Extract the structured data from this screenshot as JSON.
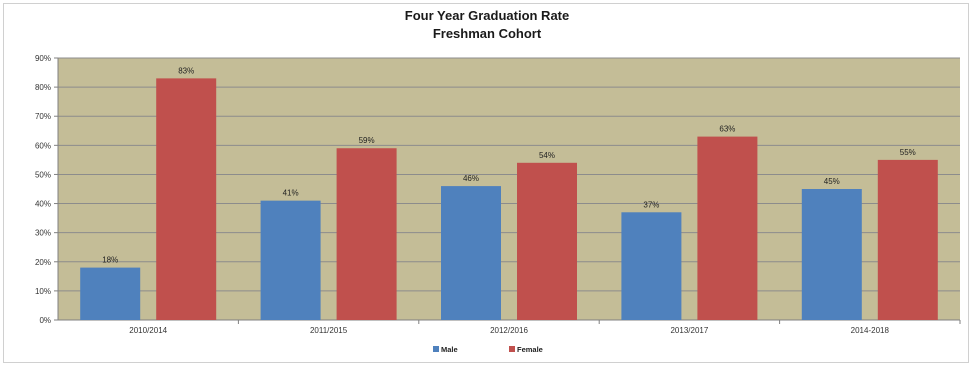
{
  "chart_data": {
    "type": "bar",
    "title": "Four Year Graduation Rate",
    "subtitle": "Freshman Cohort",
    "categories": [
      "2010/2014",
      "2011/2015",
      "2012/2016",
      "2013/2017",
      "2014-2018"
    ],
    "series": [
      {
        "name": "Male",
        "color": "#4f81bd",
        "values": [
          18,
          41,
          46,
          37,
          45
        ],
        "value_labels": [
          "18%",
          "41%",
          "46%",
          "37%",
          "45%"
        ]
      },
      {
        "name": "Female",
        "color": "#c0504d",
        "values": [
          83,
          59,
          54,
          63,
          55
        ],
        "value_labels": [
          "83%",
          "59%",
          "54%",
          "63%",
          "55%"
        ]
      }
    ],
    "ylim": [
      0,
      90
    ],
    "yticks": [
      0,
      10,
      20,
      30,
      40,
      50,
      60,
      70,
      80,
      90
    ],
    "ytick_labels": [
      "0%",
      "10%",
      "20%",
      "30%",
      "40%",
      "50%",
      "60%",
      "70%",
      "80%",
      "90%"
    ],
    "xlabel": "",
    "ylabel": "",
    "grid": true,
    "legend": "bottom-center",
    "plot_background": "#c4bd97"
  }
}
